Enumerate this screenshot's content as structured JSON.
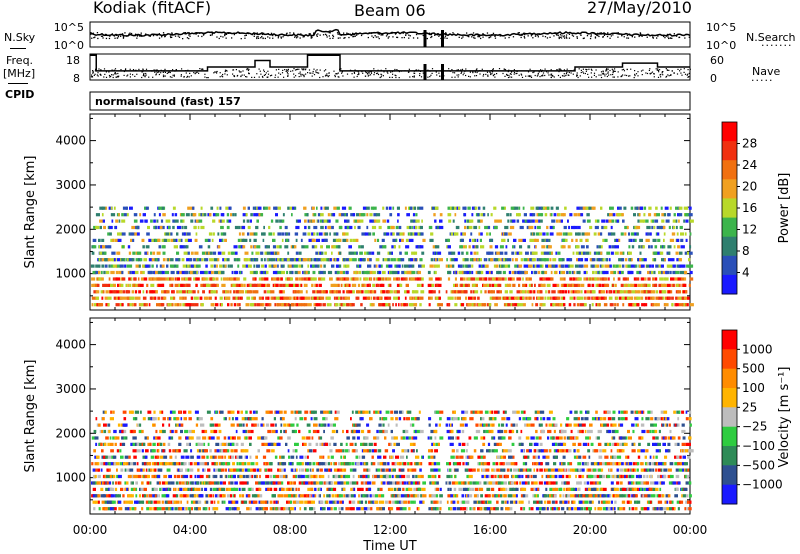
{
  "header": {
    "station": "Kodiak (fitACF)",
    "beam": "Beam 06",
    "date": "27/May/2010"
  },
  "side_labels": {
    "nsky": "N.Sky",
    "freq": "Freq.",
    "freq_unit": "[MHz]",
    "cpid": "CPID",
    "nsearch": "N.Search",
    "nave": "Nave"
  },
  "cpid_text": "normalsound (fast) 157",
  "colors": {
    "power": [
      "#1a1aff",
      "#2a4fb8",
      "#2f7f6f",
      "#3cb44b",
      "#b8d82a",
      "#f0a020",
      "#f07010",
      "#f03010",
      "#ff0000"
    ],
    "velocity": [
      "#ff0000",
      "#ff4a00",
      "#ff8c00",
      "#ffb400",
      "#bdbdbd",
      "#2ecc40",
      "#2e8b57",
      "#2e5090",
      "#1a1aff"
    ]
  },
  "chart_data": [
    {
      "type": "line",
      "panel": "noise",
      "left_ticks": [
        "10^5",
        "10^0"
      ],
      "right_ticks": [
        "10^5",
        "10^0"
      ],
      "left_series": "N.Sky",
      "right_series": "N.Search"
    },
    {
      "type": "line",
      "panel": "frequency",
      "left_ticks": [
        18,
        8
      ],
      "right_ticks": [
        60,
        0
      ],
      "left_series": "Freq. [MHz]",
      "right_series": "Nave",
      "freq_steps": [
        {
          "t0": 0.0,
          "t1": 0.25,
          "v": 17.5
        },
        {
          "t0": 0.25,
          "t1": 4.7,
          "v": 11.5
        },
        {
          "t0": 4.7,
          "t1": 6.6,
          "v": 13
        },
        {
          "t0": 6.6,
          "t1": 7.2,
          "v": 15.5
        },
        {
          "t0": 7.2,
          "t1": 8.7,
          "v": 13
        },
        {
          "t0": 8.7,
          "t1": 10.0,
          "v": 17.5
        },
        {
          "t0": 10.0,
          "t1": 19.4,
          "v": 11.5
        },
        {
          "t0": 19.4,
          "t1": 21.3,
          "v": 13
        },
        {
          "t0": 21.3,
          "t1": 22.7,
          "v": 14.5
        },
        {
          "t0": 22.7,
          "t1": 24.0,
          "v": 13
        }
      ]
    },
    {
      "type": "heatmap",
      "panel": "power",
      "ylabel": "Slant Range [km]",
      "yticks": [
        1000,
        2000,
        3000,
        4000
      ],
      "ylim": [
        180,
        4600
      ],
      "colorbar_label": "Power [dB]",
      "colorbar_ticks": [
        "28",
        "24",
        "20",
        "16",
        "12",
        "8",
        "4"
      ],
      "clim": [
        0,
        30
      ]
    },
    {
      "type": "heatmap",
      "panel": "velocity",
      "ylabel": "Slant Range [km]",
      "yticks": [
        1000,
        2000,
        3000,
        4000
      ],
      "ylim": [
        180,
        4600
      ],
      "colorbar_label": "Velocity [m s⁻¹]",
      "colorbar_ticks": [
        "1000",
        "500",
        "100",
        "25",
        "−25",
        "−100",
        "−500",
        "−1000"
      ],
      "xlabel": "Time UT",
      "xticks": [
        "00:00",
        "04:00",
        "08:00",
        "12:00",
        "16:00",
        "20:00",
        "00:00"
      ],
      "xlim": [
        0,
        24
      ]
    }
  ]
}
